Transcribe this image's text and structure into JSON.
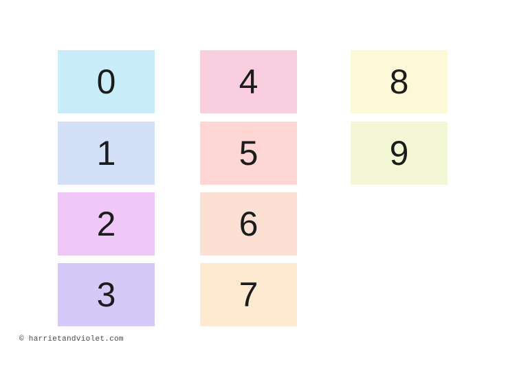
{
  "page": {
    "background": "#ffffff",
    "digit_color": "#1c1c1c"
  },
  "cards": [
    {
      "label": "0",
      "color": "#c9ecf9"
    },
    {
      "label": "1",
      "color": "#d3e0f8"
    },
    {
      "label": "2",
      "color": "#f0c8f8"
    },
    {
      "label": "3",
      "color": "#d5c9f8"
    },
    {
      "label": "4",
      "color": "#f9cfdf"
    },
    {
      "label": "5",
      "color": "#fed6d5"
    },
    {
      "label": "6",
      "color": "#fce0d3"
    },
    {
      "label": "7",
      "color": "#fdead1"
    },
    {
      "label": "8",
      "color": "#fdf8d7"
    },
    {
      "label": "9",
      "color": "#f3f7d6"
    }
  ],
  "footer": {
    "copyright": "© harrietandviolet.com",
    "color": "#4a4a4a"
  }
}
